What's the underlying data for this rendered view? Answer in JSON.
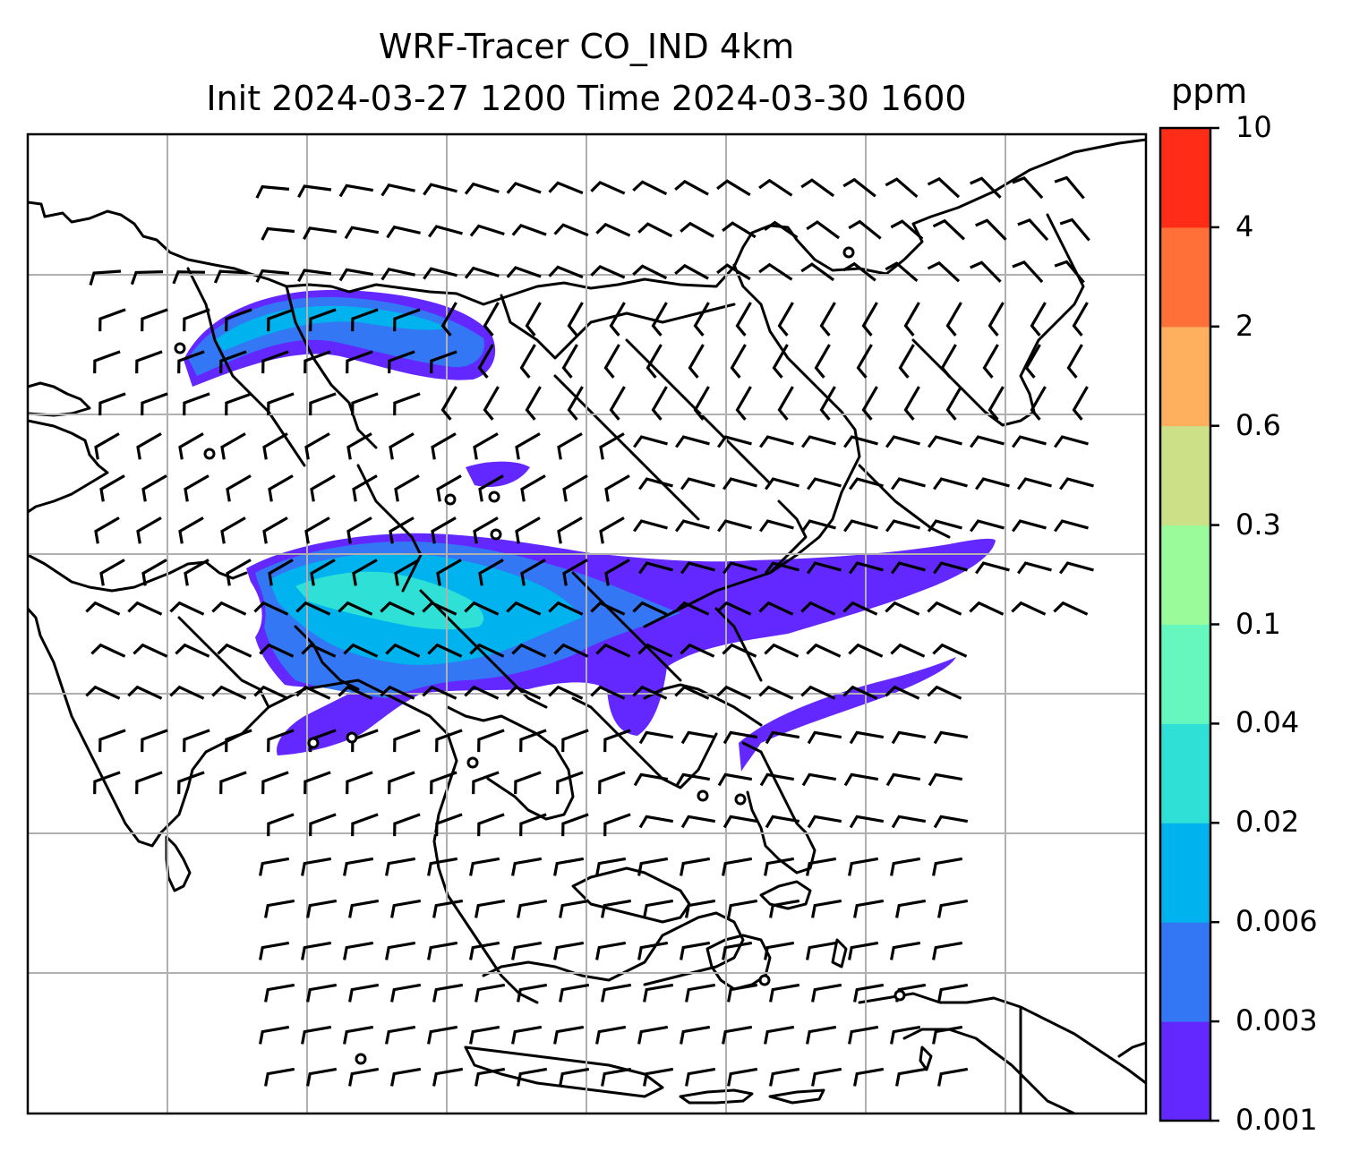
{
  "title": {
    "line1": "WRF-Tracer CO_IND 4km",
    "line2": "Init 2024-03-27 1200 Time 2024-03-30 1600"
  },
  "colorbar": {
    "unit": "ppm",
    "levels": [
      "0.001",
      "0.003",
      "0.006",
      "0.02",
      "0.04",
      "0.1",
      "0.3",
      "0.6",
      "2",
      "4",
      "10"
    ],
    "colors": [
      "#6328ff",
      "#3377f5",
      "#00b3ee",
      "#2ee0d6",
      "#66f7bf",
      "#99fb99",
      "#cce187",
      "#ffb05e",
      "#ff7039",
      "#ff2c18"
    ]
  },
  "map": {
    "gridlines": true,
    "plume_colors": {
      "low": "#6328ff",
      "mid": "#3377f5",
      "high": "#00b3ee",
      "peak": "#2ee0d6"
    }
  }
}
